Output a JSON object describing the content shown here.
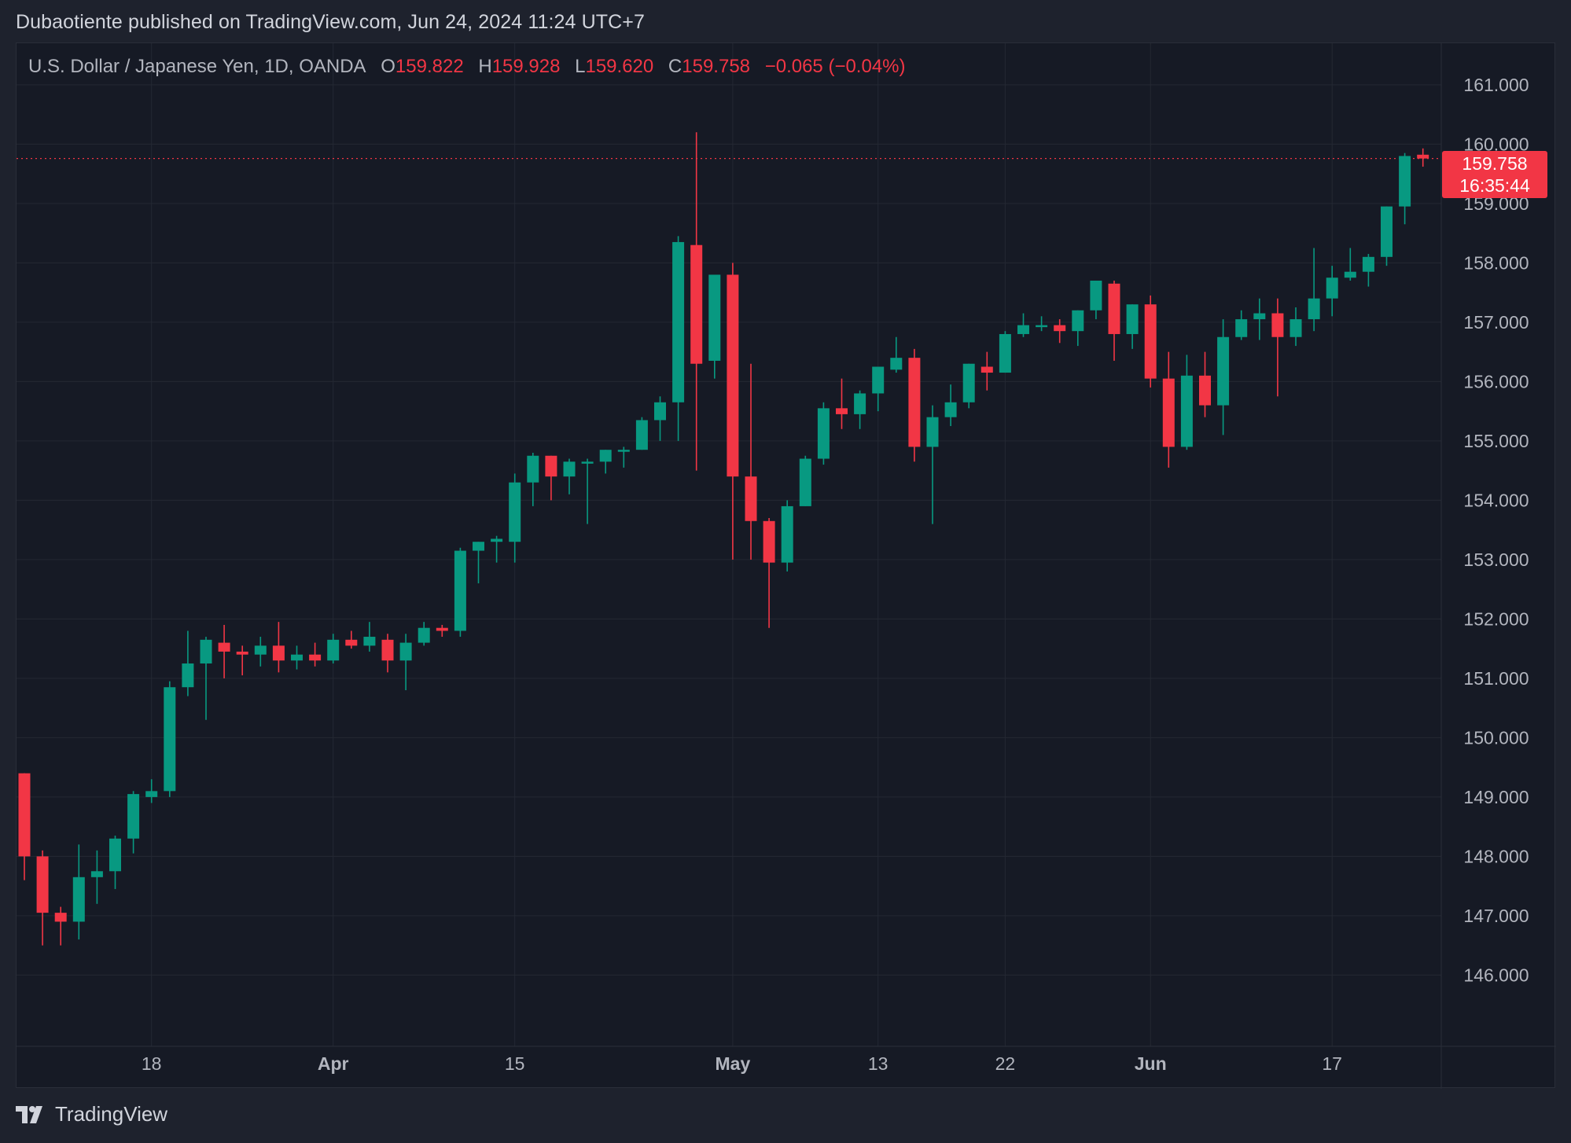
{
  "header": {
    "published_line": "Dubaotiente published on TradingView.com, Jun 24, 2024 11:24 UTC+7"
  },
  "legend": {
    "symbol": "U.S. Dollar / Japanese Yen, 1D, OANDA",
    "open_label": "O",
    "open_value": "159.822",
    "high_label": "H",
    "high_value": "159.928",
    "low_label": "L",
    "low_value": "159.620",
    "close_label": "C",
    "close_value": "159.758",
    "change": "−0.065 (−0.04%)"
  },
  "last_price": {
    "price": "159.758",
    "countdown": "16:35:44"
  },
  "footer": {
    "brand": "TradingView"
  },
  "colors": {
    "up": "#089981",
    "down": "#f23645",
    "background": "#161a25",
    "grid": "#242833",
    "axis_text": "#b2b5be"
  },
  "chart_data": {
    "type": "candlestick",
    "title": "U.S. Dollar / Japanese Yen, 1D, OANDA",
    "y_ticks": [
      "146.000",
      "147.000",
      "148.000",
      "149.000",
      "150.000",
      "151.000",
      "152.000",
      "153.000",
      "154.000",
      "155.000",
      "156.000",
      "157.000",
      "158.000",
      "159.000",
      "160.000",
      "161.000"
    ],
    "y_range": [
      144.8,
      161.7
    ],
    "x_ticks": [
      {
        "label": "18",
        "index": 7,
        "bold": false
      },
      {
        "label": "Apr",
        "index": 17,
        "bold": true
      },
      {
        "label": "15",
        "index": 27,
        "bold": false
      },
      {
        "label": "May",
        "index": 39,
        "bold": true
      },
      {
        "label": "13",
        "index": 47,
        "bold": false
      },
      {
        "label": "22",
        "index": 54,
        "bold": false
      },
      {
        "label": "Jun",
        "index": 62,
        "bold": true
      },
      {
        "label": "17",
        "index": 72,
        "bold": false
      }
    ],
    "grid": true,
    "last_price_line": 159.758,
    "candles": [
      [
        149.4,
        149.4,
        147.6,
        148.0
      ],
      [
        148.0,
        148.1,
        146.5,
        147.05
      ],
      [
        147.05,
        147.15,
        146.5,
        146.9
      ],
      [
        146.9,
        148.2,
        146.6,
        147.65
      ],
      [
        147.65,
        148.1,
        147.2,
        147.75
      ],
      [
        147.75,
        148.35,
        147.45,
        148.3
      ],
      [
        148.3,
        149.1,
        148.05,
        149.05
      ],
      [
        149.0,
        149.3,
        148.9,
        149.1
      ],
      [
        149.1,
        150.95,
        149.0,
        150.85
      ],
      [
        150.85,
        151.8,
        150.7,
        151.25
      ],
      [
        151.25,
        151.7,
        150.3,
        151.65
      ],
      [
        151.6,
        151.9,
        151.0,
        151.45
      ],
      [
        151.45,
        151.55,
        151.05,
        151.4
      ],
      [
        151.4,
        151.7,
        151.2,
        151.55
      ],
      [
        151.55,
        151.95,
        151.1,
        151.3
      ],
      [
        151.3,
        151.55,
        151.15,
        151.4
      ],
      [
        151.4,
        151.6,
        151.2,
        151.3
      ],
      [
        151.3,
        151.75,
        151.25,
        151.65
      ],
      [
        151.65,
        151.8,
        151.5,
        151.55
      ],
      [
        151.55,
        151.95,
        151.45,
        151.7
      ],
      [
        151.65,
        151.75,
        151.1,
        151.3
      ],
      [
        151.3,
        151.75,
        150.8,
        151.6
      ],
      [
        151.6,
        151.95,
        151.55,
        151.85
      ],
      [
        151.85,
        151.9,
        151.7,
        151.8
      ],
      [
        151.8,
        153.2,
        151.7,
        153.15
      ],
      [
        153.15,
        153.3,
        152.6,
        153.3
      ],
      [
        153.3,
        153.4,
        152.95,
        153.35
      ],
      [
        153.3,
        154.45,
        152.95,
        154.3
      ],
      [
        154.3,
        154.8,
        153.9,
        154.75
      ],
      [
        154.75,
        154.75,
        154.0,
        154.4
      ],
      [
        154.4,
        154.7,
        154.1,
        154.65
      ],
      [
        154.65,
        154.7,
        153.6,
        154.65
      ],
      [
        154.65,
        154.85,
        154.45,
        154.85
      ],
      [
        154.85,
        154.9,
        154.55,
        154.85
      ],
      [
        154.85,
        155.4,
        154.85,
        155.35
      ],
      [
        155.35,
        155.75,
        155.0,
        155.65
      ],
      [
        155.65,
        158.45,
        155.0,
        158.35
      ],
      [
        158.3,
        160.2,
        154.5,
        156.3
      ],
      [
        156.35,
        157.8,
        156.05,
        157.8
      ],
      [
        157.8,
        158.0,
        153.0,
        154.4
      ],
      [
        154.4,
        156.3,
        153.0,
        153.65
      ],
      [
        153.65,
        153.7,
        151.85,
        152.95
      ],
      [
        152.95,
        154.0,
        152.8,
        153.9
      ],
      [
        153.9,
        154.75,
        153.9,
        154.7
      ],
      [
        154.7,
        155.65,
        154.6,
        155.55
      ],
      [
        155.55,
        156.05,
        155.2,
        155.45
      ],
      [
        155.45,
        155.85,
        155.2,
        155.8
      ],
      [
        155.8,
        156.25,
        155.5,
        156.25
      ],
      [
        156.2,
        156.75,
        156.15,
        156.4
      ],
      [
        156.4,
        156.55,
        154.65,
        154.9
      ],
      [
        154.9,
        155.6,
        153.6,
        155.4
      ],
      [
        155.4,
        155.95,
        155.25,
        155.65
      ],
      [
        155.65,
        156.3,
        155.55,
        156.3
      ],
      [
        156.25,
        156.5,
        155.85,
        156.15
      ],
      [
        156.15,
        156.85,
        156.15,
        156.8
      ],
      [
        156.8,
        157.15,
        156.75,
        156.95
      ],
      [
        156.95,
        157.1,
        156.85,
        156.95
      ],
      [
        156.95,
        157.05,
        156.65,
        156.85
      ],
      [
        156.85,
        157.2,
        156.6,
        157.2
      ],
      [
        157.2,
        157.7,
        157.05,
        157.7
      ],
      [
        157.65,
        157.7,
        156.35,
        156.8
      ],
      [
        156.8,
        157.3,
        156.55,
        157.3
      ],
      [
        157.3,
        157.45,
        155.9,
        156.05
      ],
      [
        156.05,
        156.5,
        154.55,
        154.9
      ],
      [
        154.9,
        156.45,
        154.85,
        156.1
      ],
      [
        156.1,
        156.5,
        155.4,
        155.6
      ],
      [
        155.6,
        157.05,
        155.1,
        156.75
      ],
      [
        156.75,
        157.2,
        156.7,
        157.05
      ],
      [
        157.05,
        157.4,
        156.7,
        157.15
      ],
      [
        157.15,
        157.4,
        155.75,
        156.75
      ],
      [
        156.75,
        157.25,
        156.6,
        157.05
      ],
      [
        157.05,
        158.25,
        156.85,
        157.4
      ],
      [
        157.4,
        157.95,
        157.1,
        157.75
      ],
      [
        157.75,
        158.25,
        157.7,
        157.85
      ],
      [
        157.85,
        158.15,
        157.6,
        158.1
      ],
      [
        158.1,
        158.95,
        157.95,
        158.95
      ],
      [
        158.95,
        159.85,
        158.65,
        159.8
      ],
      [
        159.822,
        159.928,
        159.62,
        159.758
      ]
    ]
  }
}
